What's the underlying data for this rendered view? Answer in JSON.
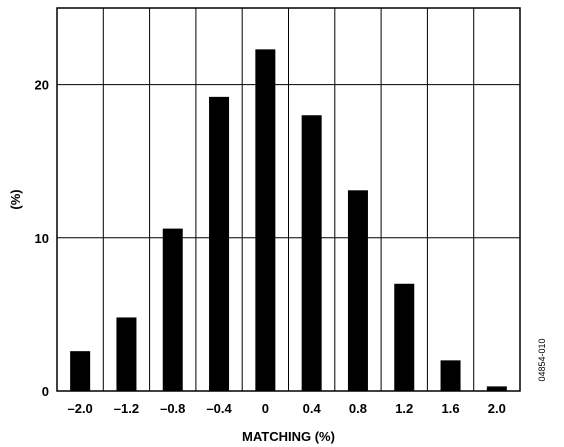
{
  "chart_data": {
    "type": "bar",
    "categories": [
      "–2.0",
      "–1.2",
      "–0.8",
      "–0.4",
      "0",
      "0.4",
      "0.8",
      "1.2",
      "1.6",
      "2.0"
    ],
    "values": [
      2.6,
      4.8,
      10.6,
      19.2,
      22.3,
      18.0,
      13.1,
      7.0,
      2.0,
      0.3
    ],
    "xlabel": "MATCHING (%)",
    "ylabel": "(%)",
    "ylim": [
      0,
      25
    ],
    "yticks": [
      "0",
      "10",
      "20"
    ],
    "ytick_values": [
      0,
      10,
      20
    ],
    "grid": true,
    "bar_color": "#000000"
  },
  "figure_id": "04854-010"
}
